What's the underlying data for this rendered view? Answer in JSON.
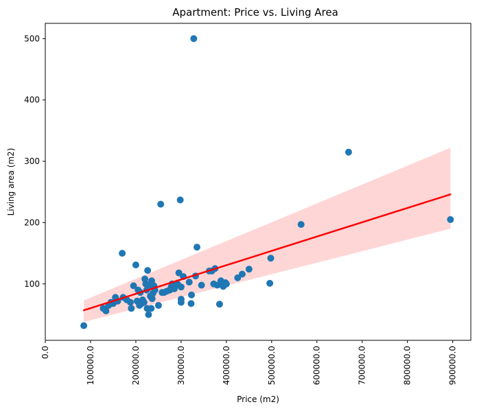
{
  "chart_data": {
    "type": "scatter",
    "title": "Apartment: Price vs. Living Area",
    "xlabel": "Price (m2)",
    "ylabel": "Living area (m2)",
    "xlim": [
      0,
      940000
    ],
    "ylim": [
      8,
      525
    ],
    "x_ticks": [
      0,
      100000,
      200000,
      300000,
      400000,
      500000,
      600000,
      700000,
      800000,
      900000
    ],
    "x_tick_labels": [
      "0.0",
      "100000.0",
      "200000.0",
      "300000.0",
      "400000.0",
      "500000.0",
      "600000.0",
      "700000.0",
      "800000.0",
      "900000.0"
    ],
    "y_ticks": [
      100,
      200,
      300,
      400,
      500
    ],
    "y_tick_labels": [
      "100",
      "200",
      "300",
      "400",
      "500"
    ],
    "grid": false,
    "legend": "none",
    "colors": {
      "points": "#1f77b4",
      "regression_line": "#ff0000",
      "confidence_band": "#ffd6d6"
    },
    "series": [
      {
        "points": [
          [
            85000,
            32
          ],
          [
            128000,
            60
          ],
          [
            134000,
            56
          ],
          [
            140000,
            65
          ],
          [
            145000,
            70
          ],
          [
            150000,
            68
          ],
          [
            155000,
            78
          ],
          [
            160000,
            72
          ],
          [
            170000,
            150
          ],
          [
            172000,
            78
          ],
          [
            180000,
            74
          ],
          [
            188000,
            70
          ],
          [
            190000,
            60
          ],
          [
            195000,
            97
          ],
          [
            200000,
            131
          ],
          [
            203000,
            72
          ],
          [
            205000,
            90
          ],
          [
            208000,
            65
          ],
          [
            210000,
            86
          ],
          [
            213000,
            68
          ],
          [
            215000,
            74
          ],
          [
            218000,
            70
          ],
          [
            220000,
            108
          ],
          [
            222000,
            100
          ],
          [
            224000,
            90
          ],
          [
            225000,
            60
          ],
          [
            226000,
            122
          ],
          [
            228000,
            50
          ],
          [
            230000,
            96
          ],
          [
            232000,
            80
          ],
          [
            234000,
            60
          ],
          [
            235000,
            105
          ],
          [
            236000,
            76
          ],
          [
            238000,
            85
          ],
          [
            240000,
            97
          ],
          [
            242000,
            90
          ],
          [
            250000,
            65
          ],
          [
            255000,
            230
          ],
          [
            258000,
            86
          ],
          [
            262000,
            86
          ],
          [
            268000,
            88
          ],
          [
            275000,
            90
          ],
          [
            278000,
            95
          ],
          [
            280000,
            100
          ],
          [
            285000,
            92
          ],
          [
            288000,
            98
          ],
          [
            292000,
            100
          ],
          [
            295000,
            118
          ],
          [
            298000,
            237
          ],
          [
            300000,
            95
          ],
          [
            300000,
            75
          ],
          [
            300000,
            70
          ],
          [
            305000,
            112
          ],
          [
            318000,
            103
          ],
          [
            322000,
            68
          ],
          [
            323000,
            82
          ],
          [
            328000,
            500
          ],
          [
            332000,
            113
          ],
          [
            335000,
            160
          ],
          [
            345000,
            98
          ],
          [
            362000,
            121
          ],
          [
            368000,
            121
          ],
          [
            372000,
            100
          ],
          [
            375000,
            125
          ],
          [
            380000,
            98
          ],
          [
            385000,
            67
          ],
          [
            388000,
            105
          ],
          [
            390000,
            100
          ],
          [
            393000,
            96
          ],
          [
            395000,
            98
          ],
          [
            398000,
            102
          ],
          [
            400000,
            100
          ],
          [
            425000,
            110
          ],
          [
            435000,
            116
          ],
          [
            450000,
            124
          ],
          [
            496000,
            101
          ],
          [
            498000,
            142
          ],
          [
            565000,
            197
          ],
          [
            670000,
            315
          ],
          [
            895000,
            205
          ]
        ]
      }
    ],
    "regression": {
      "x_range": [
        85000,
        895000
      ],
      "y_range": [
        57,
        246
      ],
      "band_lower": [
        38,
        190
      ],
      "band_upper": [
        73,
        322
      ]
    }
  }
}
